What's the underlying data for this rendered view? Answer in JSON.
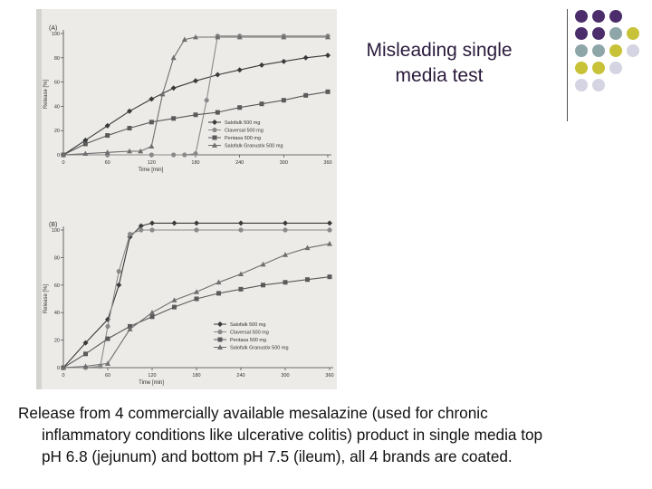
{
  "slide": {
    "title_lines": [
      "Misleading single",
      "media test"
    ],
    "caption_lines": [
      "Release from 4 commercially available mesalazine (used for chronic",
      "inflammatory conditions like ulcerative colitis) product in single media top",
      "pH 6.8 (jejunum) and bottom pH 7.5 (ileum), all 4 brands are coated."
    ],
    "dot_grid": [
      [
        "#4b2d6b",
        "#4b2d6b",
        "#4b2d6b",
        ""
      ],
      [
        "#4b2d6b",
        "#4b2d6b",
        "#8fa6a8",
        "#c8c238"
      ],
      [
        "#8fa6a8",
        "#8fa6a8",
        "#c8c238",
        "#d4d4e2"
      ],
      [
        "#c8c238",
        "#c8c238",
        "#d4d4e2",
        ""
      ],
      [
        "#d4d4e2",
        "#d4d4e2",
        "",
        ""
      ]
    ]
  },
  "chart_data": [
    {
      "type": "line",
      "panel_label": "(A)",
      "xlabel": "Time [min]",
      "ylabel": "Release [%]",
      "xlim": [
        0,
        360
      ],
      "ylim": [
        0,
        100
      ],
      "xticks": [
        0,
        60,
        120,
        180,
        240,
        300,
        360
      ],
      "yticks": [
        0,
        20,
        40,
        60,
        80,
        100
      ],
      "legend_position": "inside-right",
      "series": [
        {
          "name": "Salofalk 500 mg",
          "marker": "diamond",
          "color": "#3a3a3a",
          "x": [
            0,
            30,
            60,
            90,
            120,
            150,
            180,
            210,
            240,
            270,
            300,
            330,
            360
          ],
          "y": [
            0,
            12,
            24,
            36,
            46,
            55,
            61,
            66,
            70,
            74,
            77,
            80,
            82
          ]
        },
        {
          "name": "Claversal 500 mg",
          "marker": "circle",
          "color": "#8a8a8a",
          "x": [
            0,
            60,
            120,
            150,
            165,
            180,
            195,
            210,
            240,
            300,
            360
          ],
          "y": [
            0,
            0,
            0,
            0,
            0,
            1,
            45,
            98,
            98,
            98,
            98
          ]
        },
        {
          "name": "Pentasa 500 mg",
          "marker": "square",
          "color": "#5a5a5a",
          "x": [
            0,
            30,
            60,
            90,
            120,
            150,
            180,
            210,
            240,
            270,
            300,
            330,
            360
          ],
          "y": [
            0,
            9,
            16,
            22,
            27,
            30,
            33,
            35,
            39,
            42,
            45,
            49,
            52
          ]
        },
        {
          "name": "Salofalk Granustix 500 mg",
          "marker": "triangle",
          "color": "#6e6e6e",
          "x": [
            0,
            30,
            60,
            90,
            105,
            120,
            135,
            150,
            165,
            180,
            210,
            240,
            300,
            360
          ],
          "y": [
            0,
            1,
            2,
            3,
            3,
            7,
            50,
            80,
            95,
            97,
            97,
            97,
            97,
            97
          ]
        }
      ]
    },
    {
      "type": "line",
      "panel_label": "(B)",
      "xlabel": "Time [min]",
      "ylabel": "Release [%]",
      "xlim": [
        0,
        360
      ],
      "ylim": [
        0,
        100
      ],
      "xticks": [
        0,
        60,
        120,
        180,
        240,
        300,
        360
      ],
      "yticks": [
        0,
        20,
        40,
        60,
        80,
        100
      ],
      "legend_position": "inside-right",
      "series": [
        {
          "name": "Salofalk 500 mg",
          "marker": "diamond",
          "color": "#3a3a3a",
          "x": [
            0,
            30,
            60,
            75,
            90,
            105,
            120,
            150,
            180,
            240,
            300,
            360
          ],
          "y": [
            0,
            18,
            35,
            60,
            95,
            103,
            105,
            105,
            105,
            105,
            105,
            105
          ]
        },
        {
          "name": "Claversal 500 mg",
          "marker": "circle",
          "color": "#8a8a8a",
          "x": [
            0,
            30,
            50,
            60,
            75,
            90,
            105,
            120,
            180,
            240,
            300,
            360
          ],
          "y": [
            0,
            0,
            1,
            30,
            70,
            97,
            100,
            100,
            100,
            100,
            100,
            100
          ]
        },
        {
          "name": "Pentasa 500 mg",
          "marker": "square",
          "color": "#5a5a5a",
          "x": [
            0,
            30,
            60,
            90,
            120,
            150,
            180,
            210,
            240,
            270,
            300,
            330,
            360
          ],
          "y": [
            0,
            10,
            21,
            30,
            37,
            44,
            50,
            54,
            57,
            60,
            62,
            64,
            66
          ]
        },
        {
          "name": "Salofalk Granustix 500 mg",
          "marker": "triangle",
          "color": "#6e6e6e",
          "x": [
            0,
            30,
            60,
            90,
            120,
            150,
            180,
            210,
            240,
            270,
            300,
            330,
            360
          ],
          "y": [
            0,
            1,
            3,
            28,
            40,
            49,
            55,
            62,
            68,
            75,
            82,
            87,
            90
          ]
        }
      ]
    }
  ]
}
